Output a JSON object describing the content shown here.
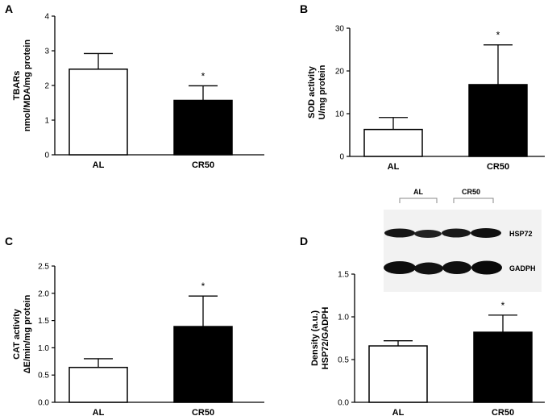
{
  "chart_data": [
    {
      "panel": "A",
      "type": "bar",
      "categories": [
        "AL",
        "CR50"
      ],
      "values": [
        2.47,
        1.57
      ],
      "errors": [
        0.45,
        0.42
      ],
      "significance": [
        "",
        "*"
      ],
      "ylabel": [
        "TBARs",
        "nmol/MDA/mg protein"
      ],
      "ylim": [
        0,
        4
      ],
      "yticks": [
        "0",
        "1",
        "2",
        "3",
        "4"
      ],
      "ytick_values": [
        0,
        1,
        2,
        3,
        4
      ],
      "bar_colors": [
        "#ffffff",
        "#000000"
      ]
    },
    {
      "panel": "B",
      "type": "bar",
      "categories": [
        "AL",
        "CR50"
      ],
      "values": [
        6.3,
        16.8
      ],
      "errors": [
        2.8,
        9.3
      ],
      "significance": [
        "",
        "*"
      ],
      "ylabel": [
        "SOD activity",
        "U/mg protein"
      ],
      "ylim": [
        0,
        30
      ],
      "yticks": [
        "0",
        "10",
        "20",
        "30"
      ],
      "ytick_values": [
        0,
        10,
        20,
        30
      ],
      "bar_colors": [
        "#ffffff",
        "#000000"
      ]
    },
    {
      "panel": "C",
      "type": "bar",
      "categories": [
        "AL",
        "CR50"
      ],
      "values": [
        0.64,
        1.39
      ],
      "errors": [
        0.16,
        0.56
      ],
      "significance": [
        "",
        "*"
      ],
      "ylabel": [
        "CAT activity",
        "ΔE/min/mg protein"
      ],
      "ylim": [
        0,
        2.5
      ],
      "yticks": [
        "0.0",
        "0.5",
        "1.0",
        "1.5",
        "2.0",
        "2.5"
      ],
      "ytick_values": [
        0,
        0.5,
        1.0,
        1.5,
        2.0,
        2.5
      ],
      "bar_colors": [
        "#ffffff",
        "#000000"
      ]
    },
    {
      "panel": "D",
      "type": "bar",
      "categories": [
        "AL",
        "CR50"
      ],
      "values": [
        0.66,
        0.82
      ],
      "errors": [
        0.06,
        0.2
      ],
      "significance": [
        "",
        "*"
      ],
      "ylabel": [
        "Density (a.u.)",
        "HSP72/GADPH"
      ],
      "ylim": [
        0,
        1.5
      ],
      "yticks": [
        "0.0",
        "0.5",
        "1.0",
        "1.5"
      ],
      "ytick_values": [
        0,
        0.5,
        1.0,
        1.5
      ],
      "bar_colors": [
        "#ffffff",
        "#000000"
      ],
      "blot": {
        "groups": [
          "AL",
          "CR50"
        ],
        "rows": [
          "HSP72",
          "GADPH"
        ]
      }
    }
  ]
}
